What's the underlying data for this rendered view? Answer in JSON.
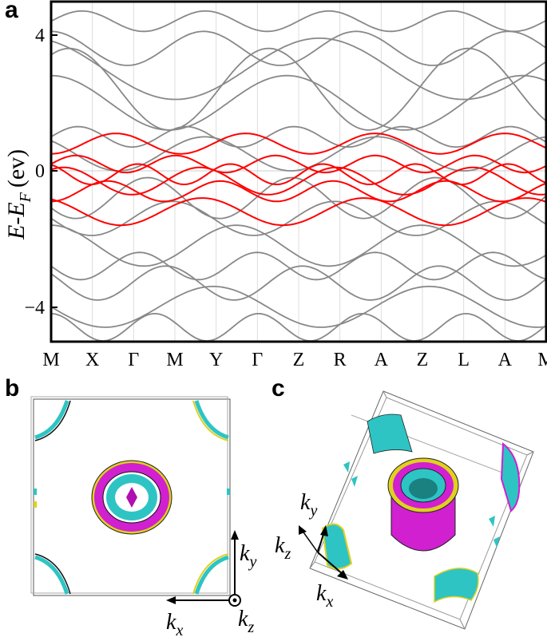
{
  "panels": {
    "a": {
      "label": "a"
    },
    "b": {
      "label": "b"
    },
    "c": {
      "label": "c"
    }
  },
  "band_plot": {
    "ylabel_main": "E-E",
    "ylabel_sub": "F",
    "ylabel_unit": "(ev)",
    "yticks": [
      "4",
      "0",
      "−4"
    ],
    "kpath": [
      "M",
      "X",
      "Γ",
      "M",
      "Y",
      "Γ",
      "Z",
      "R",
      "A",
      "Z",
      "L",
      "A",
      "M"
    ]
  },
  "axes_b": {
    "ky_base": "k",
    "ky_sub": "y",
    "kx_base": "k",
    "kx_sub": "x",
    "kz_base": "k",
    "kz_sub": "z"
  },
  "axes_c": {
    "ky_base": "k",
    "ky_sub": "y",
    "kz_base": "k",
    "kz_sub": "z",
    "kx_base": "k",
    "kx_sub": "x"
  },
  "colors": {
    "highlight_bands": "#ff0000",
    "other_bands": "#888888",
    "fs_cyan": "#2ec4c4",
    "fs_magenta": "#d020d0",
    "fs_yellow": "#e0d020"
  },
  "chart_data": {
    "type": "line",
    "ylim": [
      -5,
      5
    ],
    "xlabels": [
      "M",
      "X",
      "Γ",
      "M",
      "Y",
      "Γ",
      "Z",
      "R",
      "A",
      "Z",
      "L",
      "A",
      "M"
    ]
  }
}
